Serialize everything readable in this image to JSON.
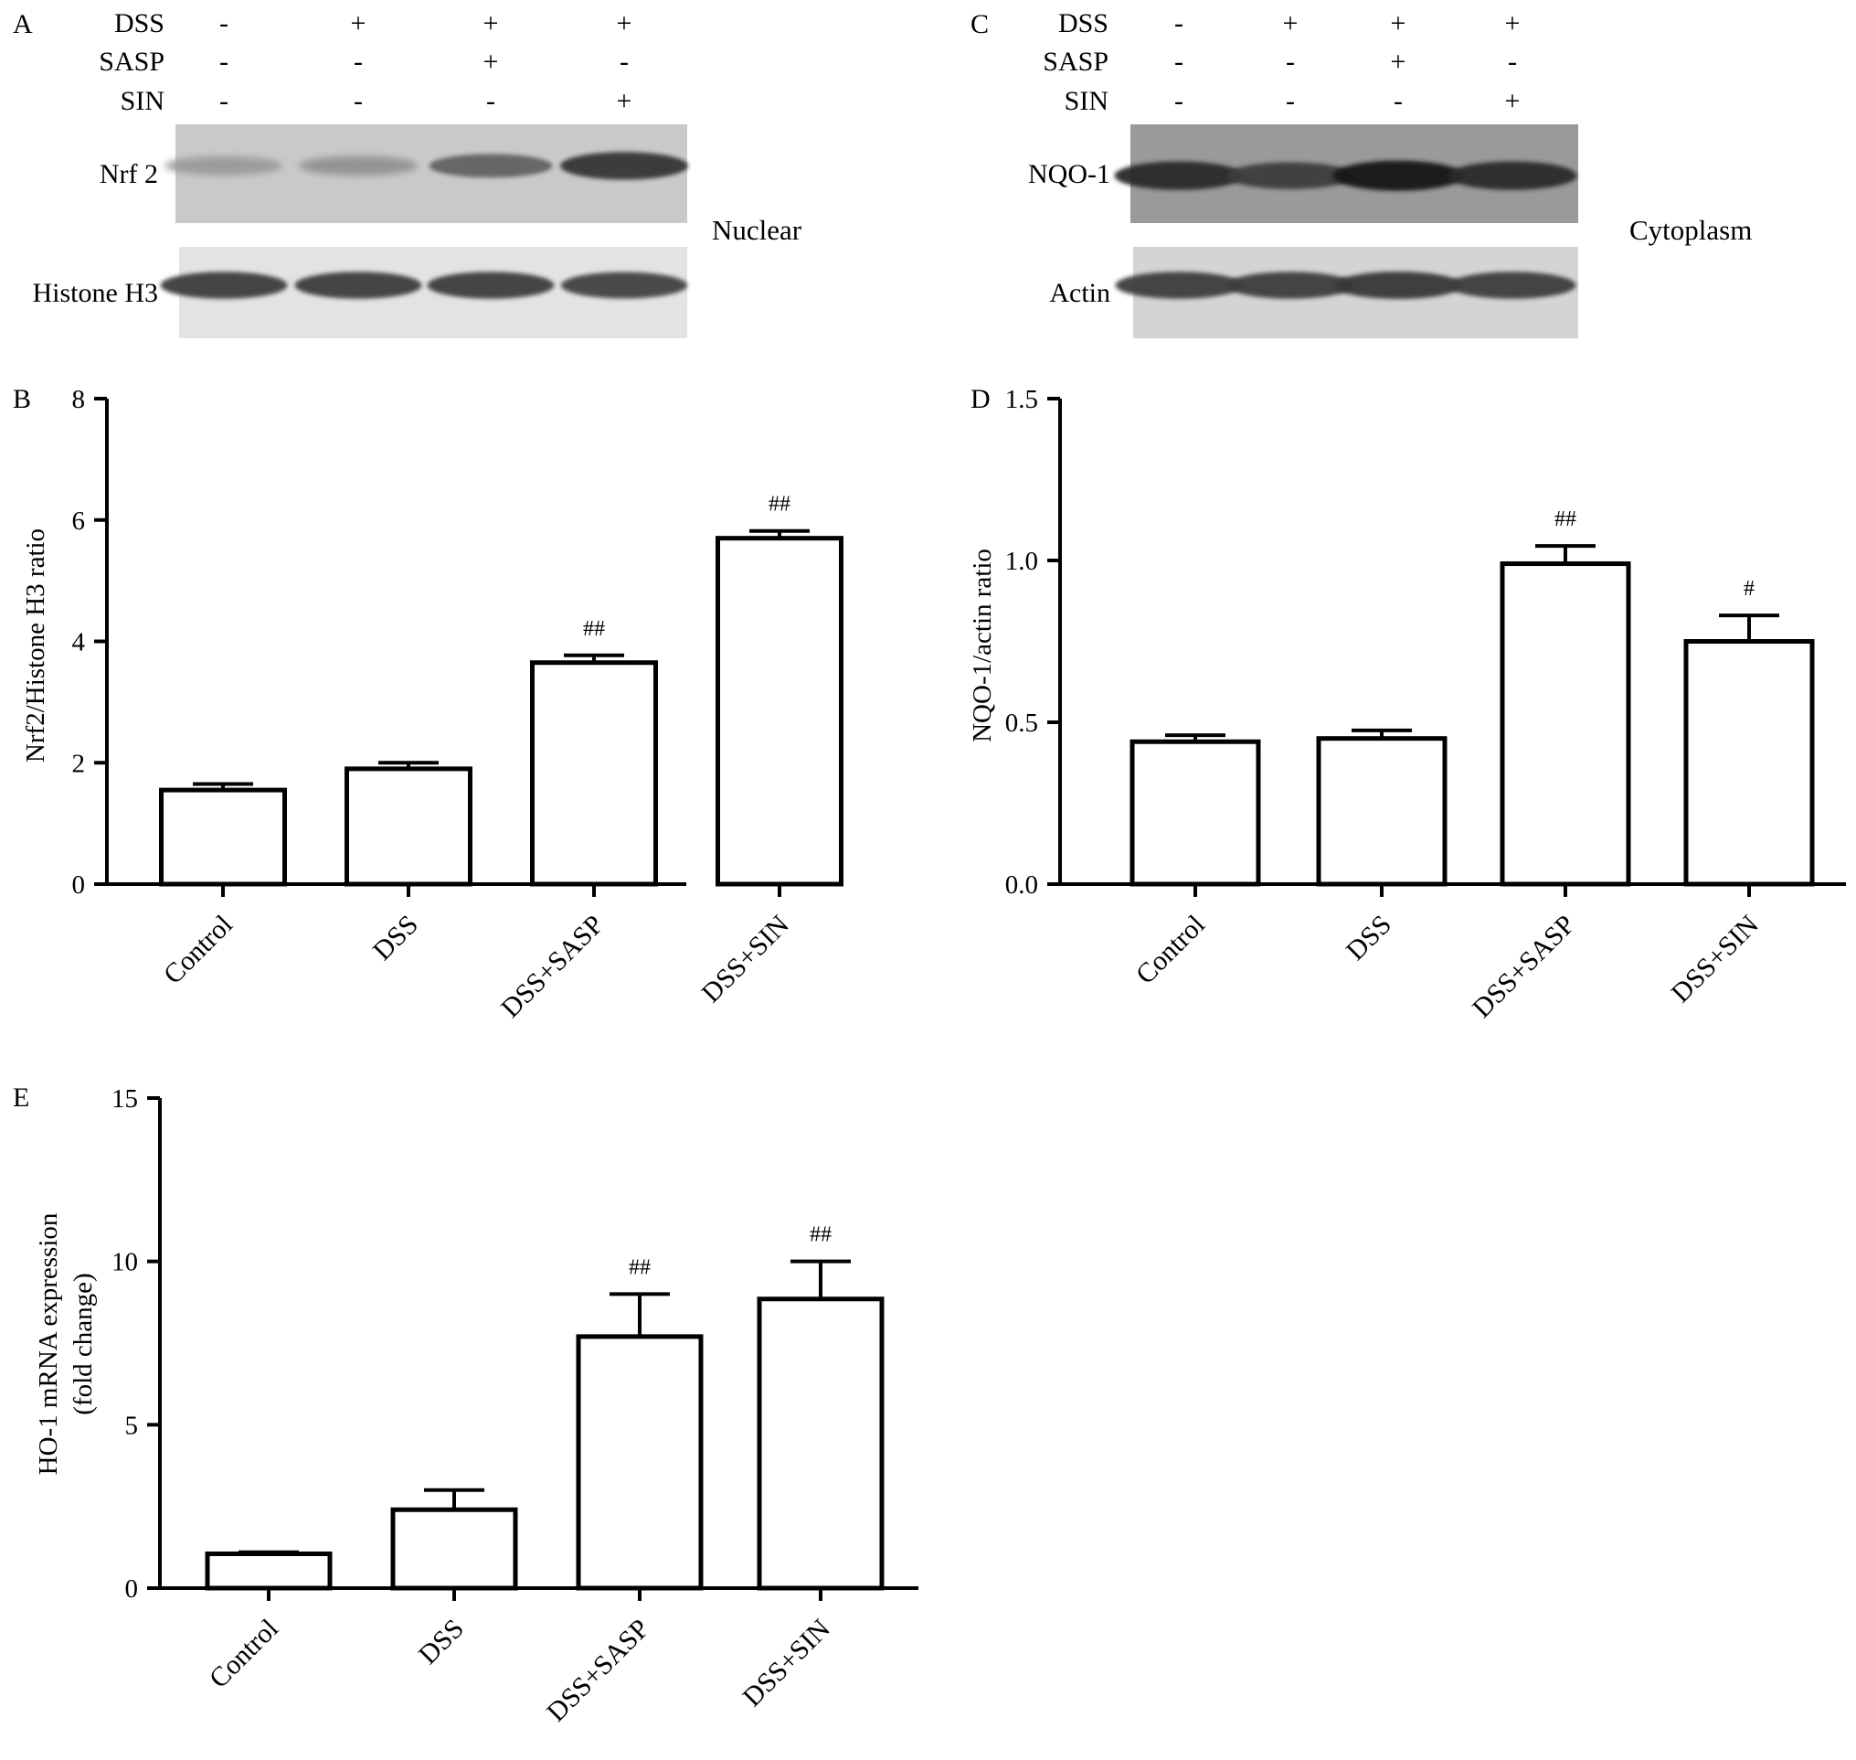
{
  "blot_A": {
    "panel_letter": "A",
    "treatment_rows": [
      {
        "label": "DSS",
        "signs": [
          "-",
          "+",
          "+",
          "+"
        ]
      },
      {
        "label": "SASP",
        "signs": [
          "-",
          "-",
          "+",
          "-"
        ]
      },
      {
        "label": "SIN",
        "signs": [
          "-",
          "-",
          "-",
          "+"
        ]
      }
    ],
    "bands": [
      {
        "label": "Nrf 2",
        "intensity": [
          0.25,
          0.3,
          0.55,
          0.8
        ]
      },
      {
        "label": "Histone H3",
        "intensity": [
          0.75,
          0.75,
          0.75,
          0.72
        ]
      }
    ],
    "fraction_label": "Nuclear"
  },
  "blot_C": {
    "panel_letter": "C",
    "treatment_rows": [
      {
        "label": "DSS",
        "signs": [
          "-",
          "+",
          "+",
          "+"
        ]
      },
      {
        "label": "SASP",
        "signs": [
          "-",
          "-",
          "+",
          "-"
        ]
      },
      {
        "label": "SIN",
        "signs": [
          "-",
          "-",
          "-",
          "+"
        ]
      }
    ],
    "bands": [
      {
        "label": "NQO-1",
        "intensity": [
          0.85,
          0.75,
          0.95,
          0.85
        ]
      },
      {
        "label": "Actin",
        "intensity": [
          0.75,
          0.75,
          0.78,
          0.75
        ]
      }
    ],
    "fraction_label": "Cytoplasm"
  },
  "chart_data": [
    {
      "panel": "B",
      "type": "bar",
      "categories": [
        "Control",
        "DSS",
        "DSS+SASP",
        "DSS+SIN"
      ],
      "values": [
        1.55,
        1.9,
        3.65,
        5.7
      ],
      "errors": [
        0.1,
        0.1,
        0.12,
        0.12
      ],
      "annotations": [
        "",
        "",
        "##",
        "##"
      ],
      "ylabel": "Nrf2/Histone H3 ratio",
      "ylim": [
        0,
        8
      ],
      "yticks": [
        "0",
        "2",
        "4",
        "6",
        "8"
      ],
      "ytick_values": [
        0,
        2,
        4,
        6,
        8
      ]
    },
    {
      "panel": "D",
      "type": "bar",
      "categories": [
        "Control",
        "DSS",
        "DSS+SASP",
        "DSS+SIN"
      ],
      "values": [
        0.44,
        0.45,
        0.99,
        0.75
      ],
      "errors": [
        0.02,
        0.025,
        0.055,
        0.08
      ],
      "annotations": [
        "",
        "",
        "##",
        "#"
      ],
      "ylabel": "NQO-1/actin ratio",
      "ylim": [
        0,
        1.5
      ],
      "yticks": [
        "0.0",
        "0.5",
        "1.0",
        "1.5"
      ],
      "ytick_values": [
        0,
        0.5,
        1.0,
        1.5
      ]
    },
    {
      "panel": "E",
      "type": "bar",
      "categories": [
        "Control",
        "DSS",
        "DSS+SASP",
        "DSS+SIN"
      ],
      "values": [
        1.05,
        2.4,
        7.7,
        8.85
      ],
      "errors": [
        0.05,
        0.6,
        1.3,
        1.15
      ],
      "annotations": [
        "",
        "",
        "##",
        "##"
      ],
      "ylabel_lines": [
        "HO-1 mRNA expression",
        "(fold change)"
      ],
      "ylim": [
        0,
        15
      ],
      "yticks": [
        "0",
        "5",
        "10",
        "15"
      ],
      "ytick_values": [
        0,
        5,
        10,
        15
      ]
    }
  ]
}
